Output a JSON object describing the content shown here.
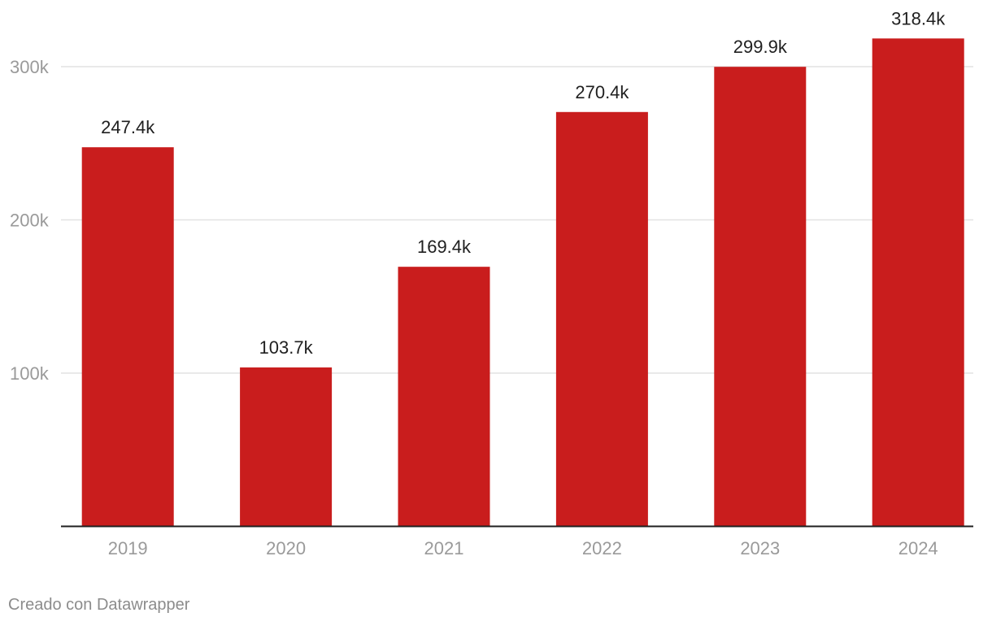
{
  "colors": {
    "bar": "#c91d1d",
    "grid": "#e2e2e2",
    "axis": "#1f1f1f",
    "tick_text": "#9a9a9a",
    "label_text": "#1f1f1f",
    "credit_text": "#8c8c8c"
  },
  "chart_data": {
    "type": "bar",
    "title": "",
    "xlabel": "",
    "ylabel": "",
    "categories": [
      "2019",
      "2020",
      "2021",
      "2022",
      "2023",
      "2024"
    ],
    "values": [
      247400,
      103700,
      169400,
      270400,
      299900,
      318400
    ],
    "value_labels": [
      "247.4k",
      "103.7k",
      "169.4k",
      "270.4k",
      "299.9k",
      "318.4k"
    ],
    "ylim": [
      0,
      320000
    ],
    "y_ticks": [
      100000,
      200000,
      300000
    ],
    "y_tick_labels": [
      "100k",
      "200k",
      "300k"
    ],
    "grid": true,
    "legend": "none"
  },
  "footer": {
    "credit": "Creado con Datawrapper"
  }
}
